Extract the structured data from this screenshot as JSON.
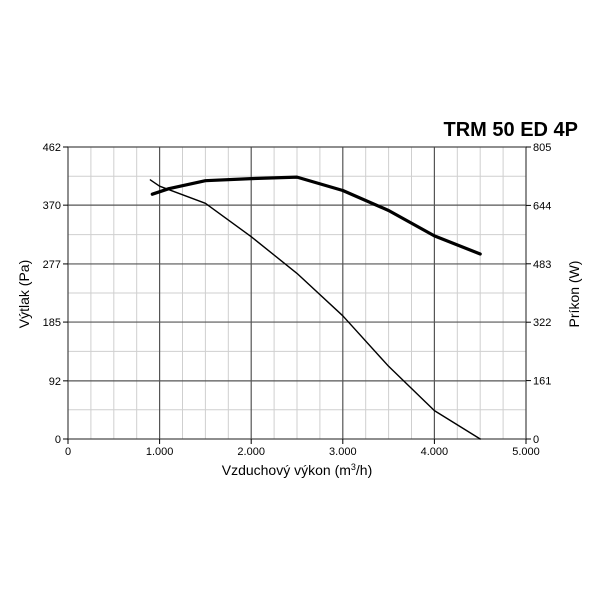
{
  "chart_data": {
    "type": "line",
    "title": "TRM 50 ED 4P",
    "xlabel_main": "Vzduchový výkon (m",
    "xlabel_sup": "3",
    "xlabel_tail": "/h)",
    "ylabel": "Výtlak (Pa)",
    "y2label": "Príkon (W)",
    "xlim": [
      0,
      5000
    ],
    "ylim": [
      0,
      462
    ],
    "y2lim": [
      0,
      805
    ],
    "x_ticks": [
      {
        "value": 0,
        "label": "0"
      },
      {
        "value": 1000,
        "label": "1.000"
      },
      {
        "value": 2000,
        "label": "2.000"
      },
      {
        "value": 3000,
        "label": "3.000"
      },
      {
        "value": 4000,
        "label": "4.000"
      },
      {
        "value": 5000,
        "label": "5.000"
      }
    ],
    "y_ticks": [
      {
        "value": 0,
        "label": "0"
      },
      {
        "value": 92,
        "label": "92"
      },
      {
        "value": 185,
        "label": "185"
      },
      {
        "value": 277,
        "label": "277"
      },
      {
        "value": 370,
        "label": "370"
      },
      {
        "value": 462,
        "label": "462"
      }
    ],
    "y2_ticks": [
      {
        "value": 0,
        "label": "0"
      },
      {
        "value": 161,
        "label": "161"
      },
      {
        "value": 322,
        "label": "322"
      },
      {
        "value": 483,
        "label": "483"
      },
      {
        "value": 644,
        "label": "644"
      },
      {
        "value": 805,
        "label": "805"
      }
    ],
    "grid": true,
    "series": [
      {
        "axis": "y",
        "color": "#000000",
        "x": [
          900,
          1000,
          1500,
          2000,
          2500,
          3000,
          3500,
          4000,
          4500
        ],
        "values": [
          410,
          400,
          373,
          320,
          262,
          195,
          115,
          45,
          0
        ]
      },
      {
        "axis": "y2",
        "color": "#000000",
        "x": [
          920,
          1100,
          1500,
          2000,
          2500,
          3000,
          3500,
          4000,
          4500
        ],
        "values": [
          675,
          690,
          712,
          718,
          722,
          685,
          630,
          560,
          510
        ]
      }
    ]
  }
}
